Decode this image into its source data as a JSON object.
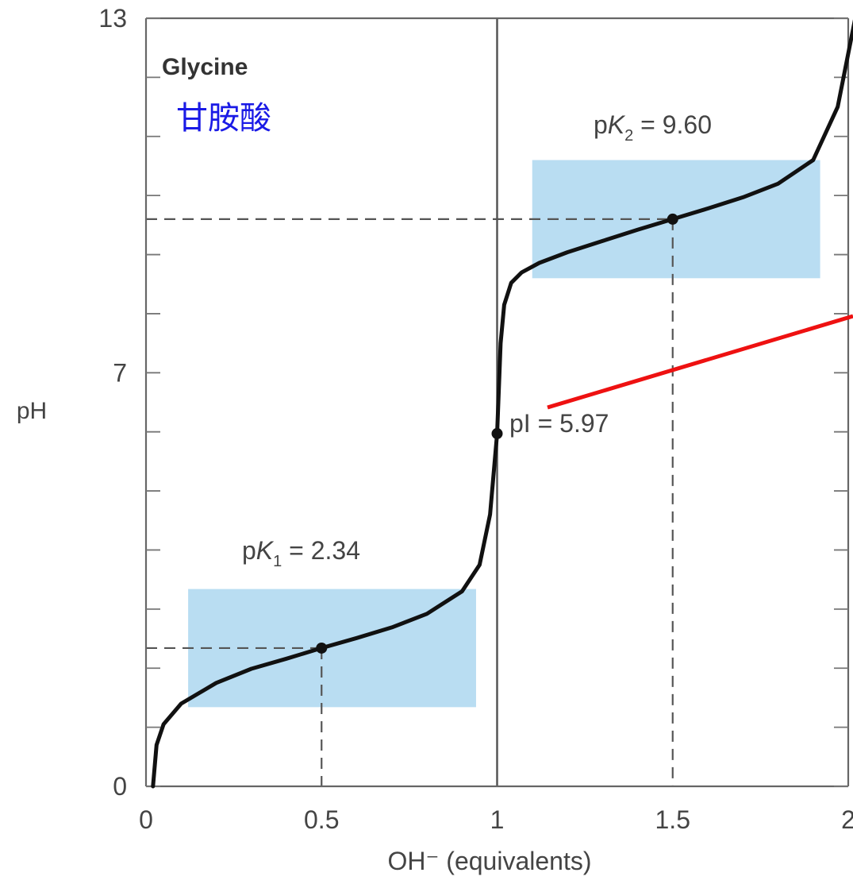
{
  "chart_data": {
    "type": "line",
    "title": "Glycine",
    "subtitle": "甘胺酸",
    "xlabel": "OH⁻ (equivalents)",
    "ylabel": "pH",
    "xlim": [
      0,
      2
    ],
    "ylim": [
      0,
      13
    ],
    "x_ticks": [
      "0",
      "0.5",
      "1",
      "1.5",
      "2"
    ],
    "x_tick_values": [
      0,
      0.5,
      1,
      1.5,
      2
    ],
    "y_ticks": [
      "0",
      "7",
      "13"
    ],
    "y_tick_values": [
      0,
      7,
      13
    ],
    "y_minor_ticks": [
      1,
      2,
      3,
      4,
      5,
      6,
      8,
      9,
      10,
      11,
      12
    ],
    "grid": false,
    "legend": "none",
    "series": [
      {
        "x": [
          0.02,
          0.03,
          0.05,
          0.1,
          0.2,
          0.3,
          0.4,
          0.5,
          0.6,
          0.7,
          0.8,
          0.9,
          0.95,
          0.98,
          1.0,
          1.01,
          1.02,
          1.04,
          1.07,
          1.12,
          1.2,
          1.3,
          1.4,
          1.5,
          1.6,
          1.7,
          1.8,
          1.9,
          1.97,
          2.02
        ],
        "y": [
          0.0,
          0.7,
          1.05,
          1.4,
          1.75,
          1.99,
          2.16,
          2.34,
          2.51,
          2.69,
          2.92,
          3.3,
          3.75,
          4.6,
          5.97,
          7.5,
          8.15,
          8.52,
          8.7,
          8.86,
          9.04,
          9.23,
          9.42,
          9.6,
          9.78,
          9.97,
          10.2,
          10.6,
          11.5,
          13.0
        ],
        "color": "#111111"
      }
    ],
    "points": [
      {
        "x": 0.5,
        "y": 2.34
      },
      {
        "x": 1.0,
        "y": 5.97
      },
      {
        "x": 1.5,
        "y": 9.6
      }
    ],
    "buffer_regions": [
      {
        "x": [
          0.12,
          0.94
        ],
        "y": [
          1.34,
          3.34
        ],
        "color": "#b9ddf2"
      },
      {
        "x": [
          1.1,
          1.92
        ],
        "y": [
          8.6,
          10.6
        ],
        "color": "#b9ddf2"
      }
    ],
    "vertical_line": {
      "x": 1.0
    },
    "annotations": {
      "pk1": {
        "prefix": "p",
        "italic": "K",
        "sub": "1",
        "rest": " = 2.34",
        "x": 0.5,
        "y": 2.34
      },
      "pk2": {
        "prefix": "p",
        "italic": "K",
        "sub": "2",
        "rest": " = 9.60",
        "x": 1.5,
        "y": 9.6
      },
      "pi": {
        "text": "pI = 5.97",
        "x": 1.0,
        "y": 5.97
      }
    },
    "accent_colors": {
      "curve": "#111111",
      "buffer": "#b9ddf2",
      "guide": "#555555",
      "subtitle": "#1a1ae6",
      "pointer": "#ee1111"
    }
  }
}
